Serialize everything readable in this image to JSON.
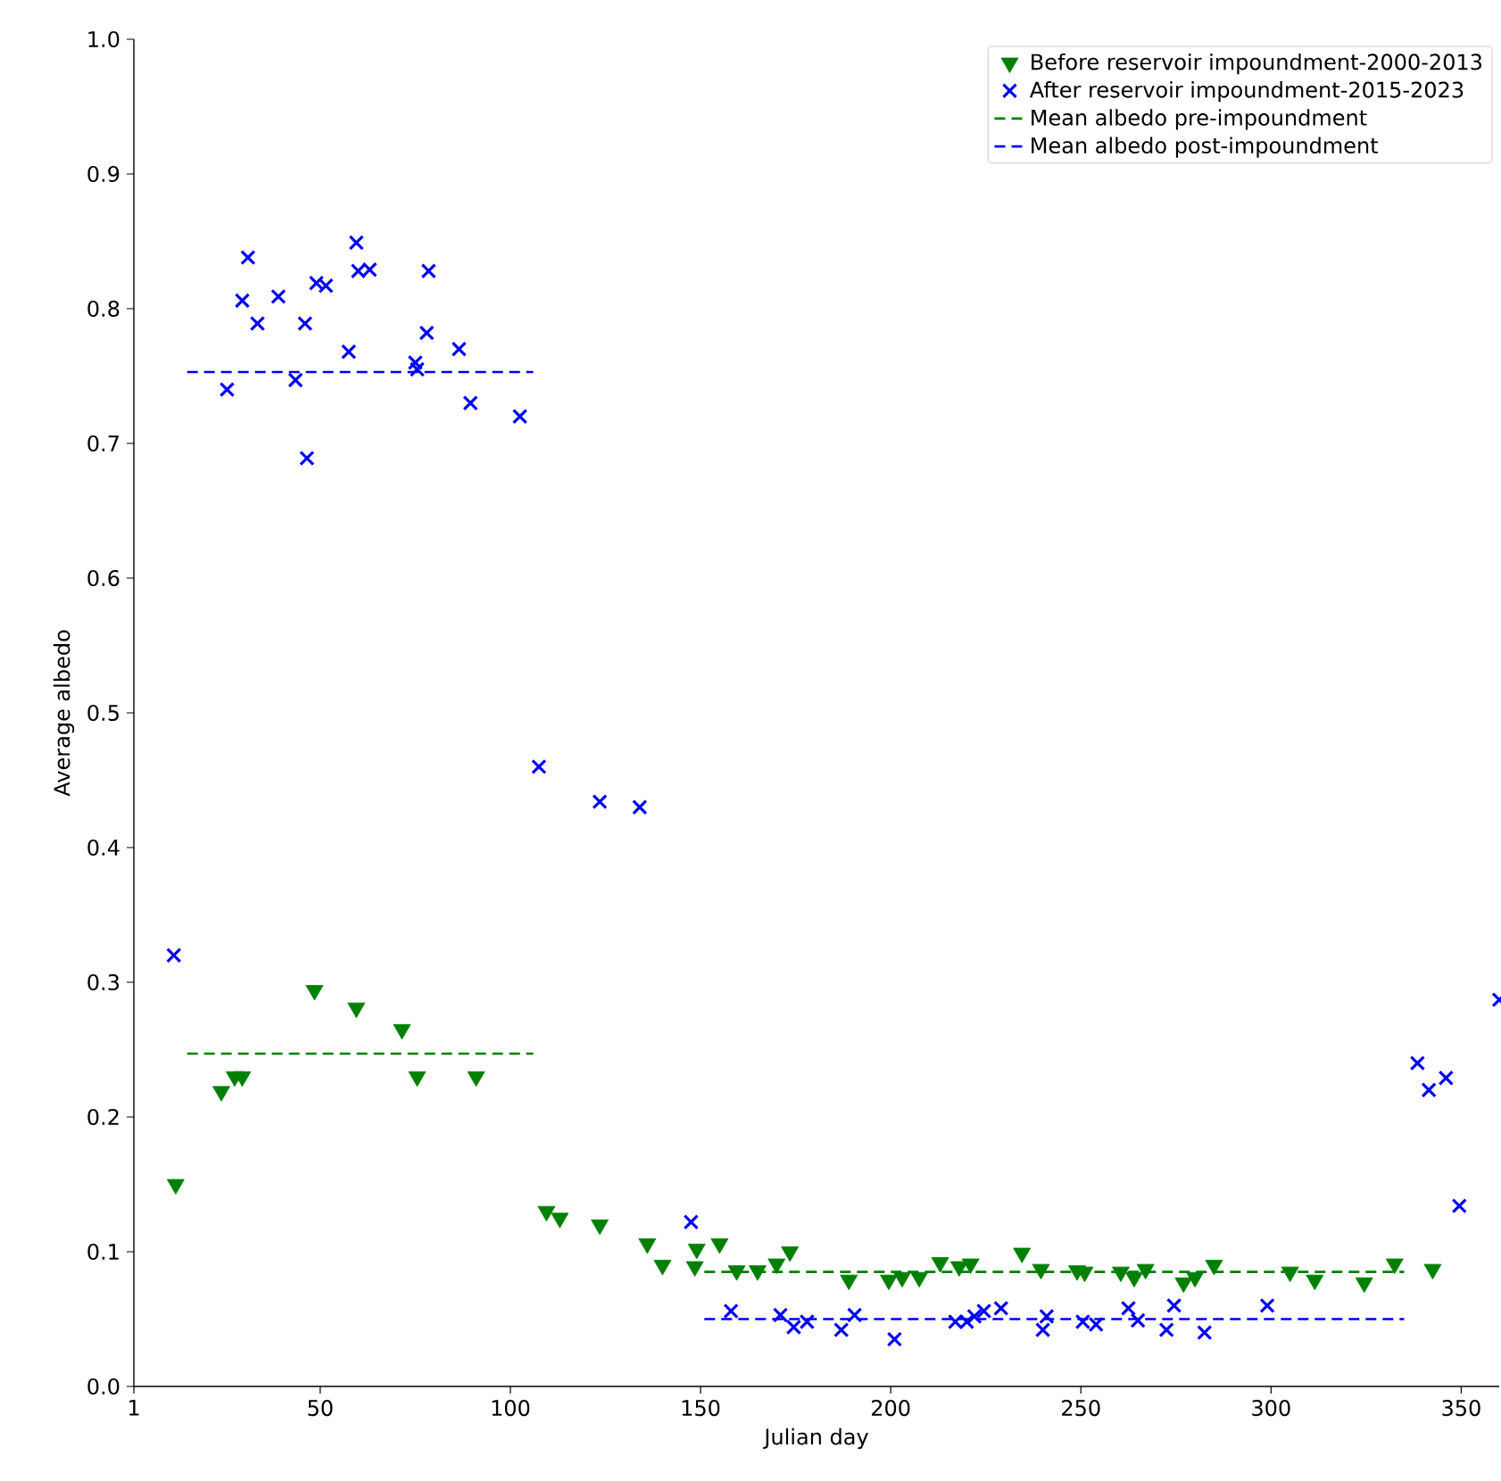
{
  "chart_data": {
    "type": "scatter",
    "xlabel": "Julian day",
    "ylabel": "Average albedo",
    "xlim": [
      1,
      360
    ],
    "ylim": [
      0,
      1
    ],
    "xticks": [
      1,
      50,
      100,
      150,
      200,
      250,
      300,
      350
    ],
    "yticks": [
      {
        "value": 0,
        "label": "0.0"
      },
      {
        "value": 0.1,
        "label": "0.1"
      },
      {
        "value": 0.2,
        "label": "0.2"
      },
      {
        "value": 0.3,
        "label": "0.3"
      },
      {
        "value": 0.4,
        "label": "0.4"
      },
      {
        "value": 0.5,
        "label": "0.5"
      },
      {
        "value": 0.6,
        "label": "0.6"
      },
      {
        "value": 0.7,
        "label": "0.7"
      },
      {
        "value": 0.8,
        "label": "0.8"
      },
      {
        "value": 0.9,
        "label": "0.9"
      },
      {
        "value": 1,
        "label": "1.0"
      }
    ],
    "legend": "top right",
    "grid": false,
    "series": [
      {
        "name": "Before reservoir impoundment-2000-2013",
        "color": "#008000",
        "marker": "triangle",
        "x": [
          12,
          24,
          27.5,
          29.5,
          48.5,
          59.5,
          71.5,
          75.5,
          91,
          109.5,
          113,
          123.5,
          136,
          140,
          148.5,
          149,
          155,
          159.5,
          165,
          170,
          173.5,
          189,
          199.5,
          203,
          207.5,
          213,
          218,
          221,
          234.5,
          239.5,
          249,
          251,
          260.5,
          264,
          267,
          277,
          280,
          285,
          305,
          311.5,
          324.5,
          332.5,
          342.5
        ],
        "values": [
          0.15,
          0.219,
          0.23,
          0.23,
          0.294,
          0.281,
          0.265,
          0.23,
          0.23,
          0.13,
          0.125,
          0.12,
          0.106,
          0.09,
          0.089,
          0.102,
          0.106,
          0.086,
          0.086,
          0.091,
          0.1,
          0.079,
          0.079,
          0.081,
          0.081,
          0.092,
          0.089,
          0.091,
          0.099,
          0.087,
          0.086,
          0.085,
          0.085,
          0.081,
          0.087,
          0.077,
          0.081,
          0.09,
          0.085,
          0.079,
          0.077,
          0.091,
          0.087
        ]
      },
      {
        "name": "After reservoir impoundment-2015-2023",
        "color": "#0000ff",
        "marker": "cross",
        "x": [
          11.5,
          25.5,
          29.5,
          31,
          33.5,
          39,
          43.5,
          46,
          46.5,
          49,
          51.5,
          57.5,
          59.5,
          60,
          63,
          75,
          75.5,
          78,
          78.5,
          86.5,
          89.5,
          102.5,
          107.5,
          123.5,
          134,
          147.5,
          158,
          171,
          174.5,
          178,
          187,
          190.5,
          201,
          217,
          220,
          222,
          224.5,
          229,
          240,
          241,
          250.5,
          254,
          262.5,
          265,
          272.5,
          274.5,
          282.5,
          299,
          338.5,
          341.5,
          346,
          349.5,
          360
        ],
        "values": [
          0.32,
          0.74,
          0.806,
          0.838,
          0.789,
          0.809,
          0.747,
          0.789,
          0.689,
          0.819,
          0.817,
          0.768,
          0.849,
          0.828,
          0.829,
          0.76,
          0.755,
          0.782,
          0.828,
          0.77,
          0.73,
          0.72,
          0.46,
          0.434,
          0.43,
          0.122,
          0.056,
          0.053,
          0.044,
          0.048,
          0.042,
          0.053,
          0.035,
          0.048,
          0.048,
          0.052,
          0.056,
          0.058,
          0.042,
          0.052,
          0.048,
          0.046,
          0.058,
          0.049,
          0.042,
          0.06,
          0.04,
          0.06,
          0.24,
          0.22,
          0.229,
          0.134,
          0.287
        ]
      },
      {
        "name": "Mean albedo pre-impoundment",
        "type": "line",
        "color": "#008000",
        "marker": "none",
        "line_style": "dashed",
        "x": [
          15,
          106,
          128,
          151,
          335
        ],
        "values": [
          0.247,
          0.247,
          null,
          0.085,
          0.085
        ]
      },
      {
        "name": "Mean albedo post-impoundment",
        "type": "line",
        "color": "#0000ff",
        "marker": "none",
        "line_style": "dashed",
        "x": [
          15,
          106,
          128,
          151,
          335
        ],
        "values": [
          0.753,
          0.753,
          null,
          0.05,
          0.05
        ]
      }
    ]
  }
}
